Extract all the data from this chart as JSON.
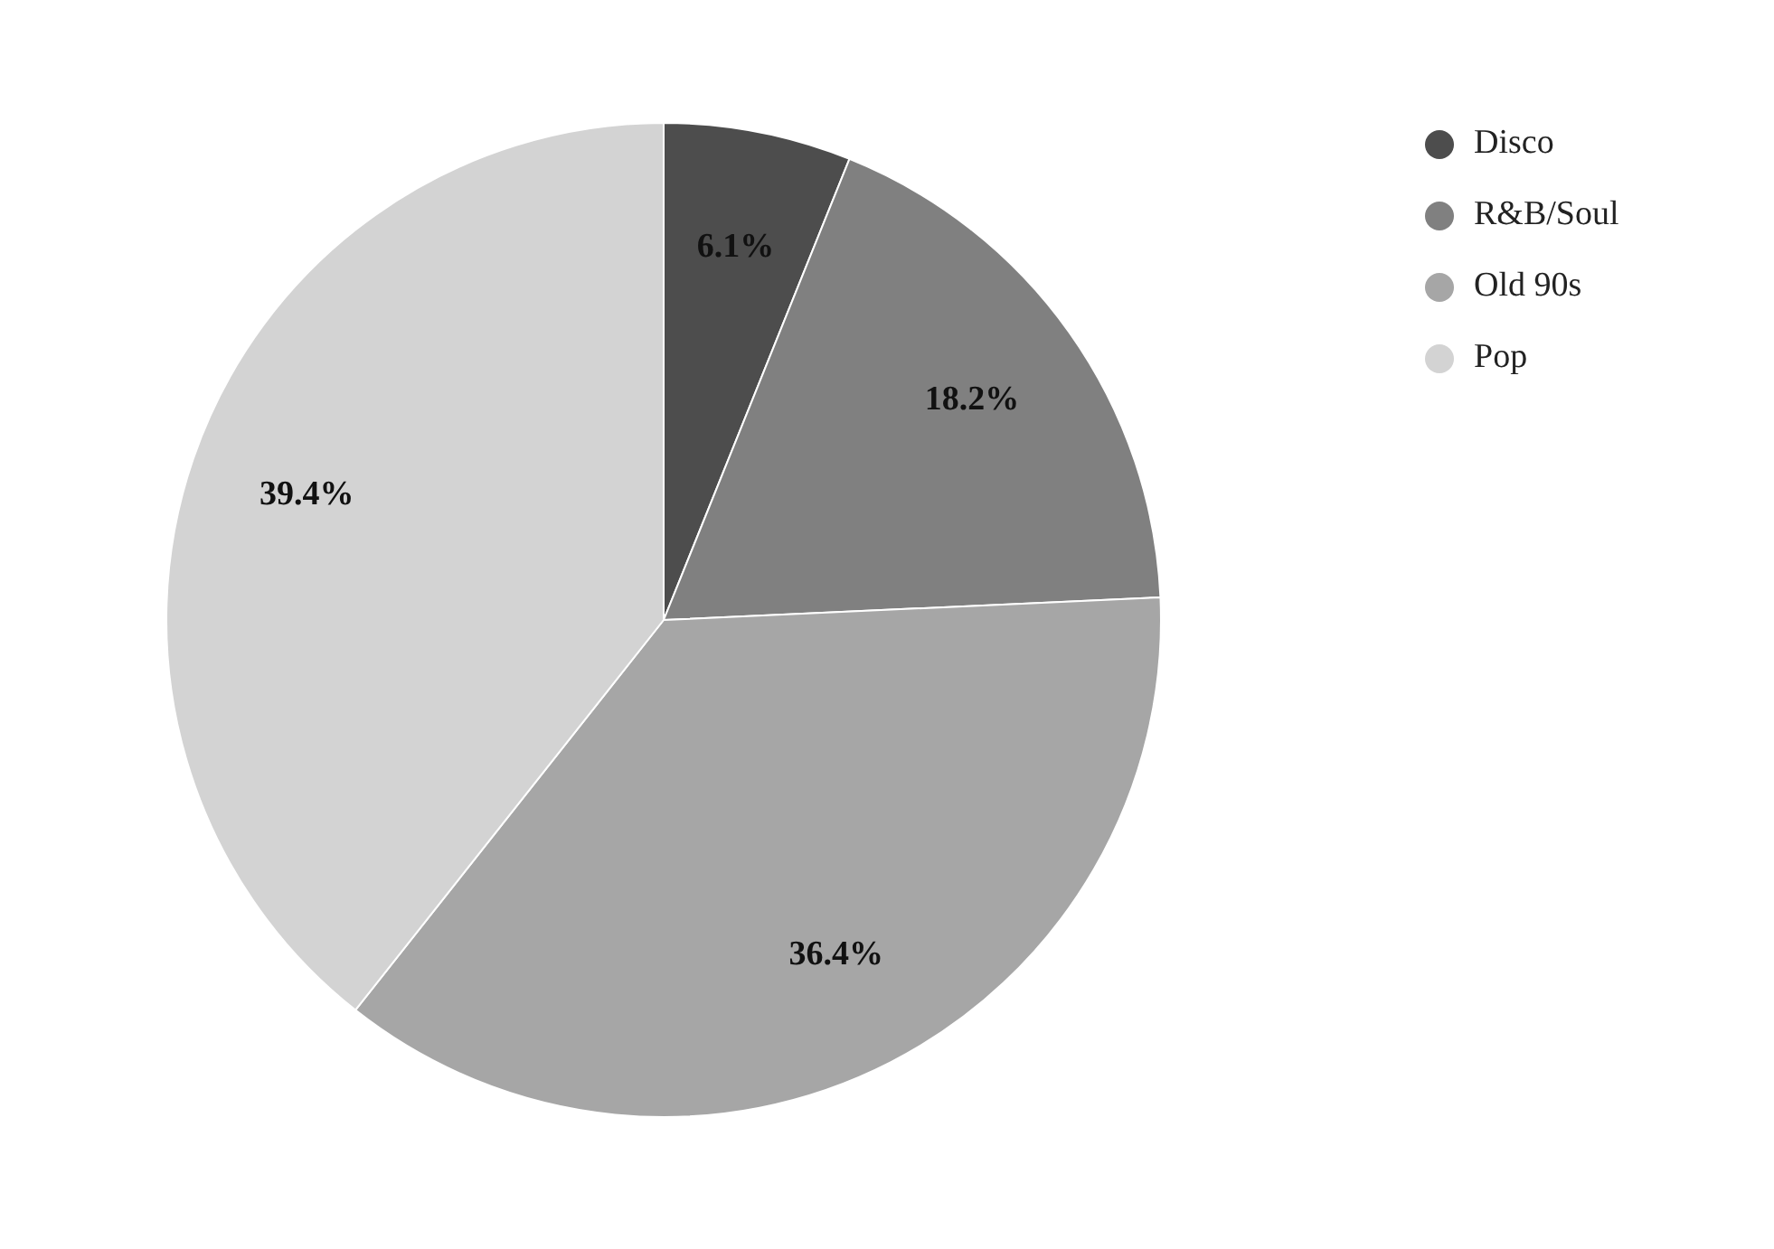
{
  "chart_data": {
    "type": "pie",
    "categories": [
      "Disco",
      "R&B/Soul",
      "Old 90s",
      "Pop"
    ],
    "values": [
      6.1,
      18.2,
      36.4,
      39.4
    ],
    "colors": [
      "#4d4d4d",
      "#808080",
      "#a6a6a6",
      "#d3d3d3"
    ],
    "value_labels": [
      "6.1%",
      "18.2%",
      "36.4%",
      "39.4%"
    ],
    "legend": "top right"
  }
}
